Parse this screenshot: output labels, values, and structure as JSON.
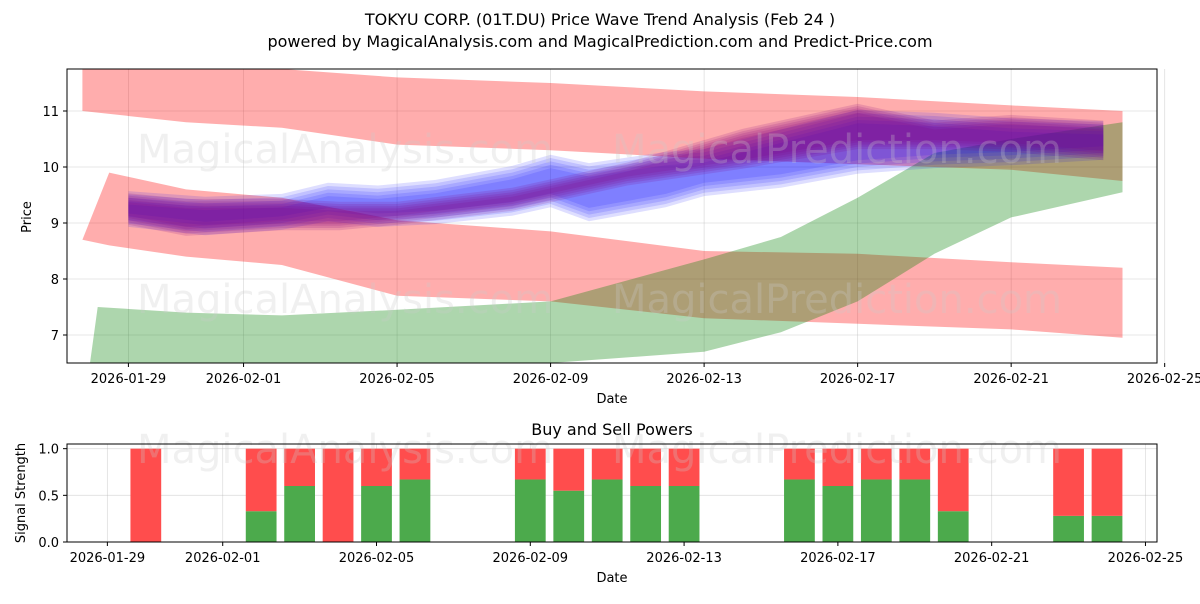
{
  "chart_data": [
    {
      "type": "area",
      "title": "TOKYU CORP. (01T.DU) Price Wave Trend Analysis (Feb 24 )",
      "subtitle": "powered by MagicalAnalysis.com and MagicalPrediction.com and Predict-Price.com",
      "xlabel": "Date",
      "ylabel": "Price",
      "xlim": [
        -1.6,
        26.8
      ],
      "ylim": [
        6.5,
        11.75
      ],
      "x_tick_labels": [
        "2026-01-29",
        "2026-02-01",
        "2026-02-05",
        "2026-02-09",
        "2026-02-13",
        "2026-02-17",
        "2026-02-21",
        "2026-02-25"
      ],
      "x_tick_values": [
        0,
        3,
        7,
        11,
        15,
        19,
        23,
        27
      ],
      "y_ticks": [
        7,
        8,
        9,
        10,
        11
      ],
      "grid": true,
      "colors": {
        "red_band": "#ff0000",
        "green_band": "#008000",
        "blue_wave": "#0000ff",
        "purple_wave": "#800080"
      },
      "series": [
        {
          "name": "upper red band",
          "x": [
            -1.2,
            1.5,
            4,
            7,
            11,
            15,
            19,
            23,
            25.9
          ],
          "upper": [
            11.85,
            11.75,
            11.75,
            11.6,
            11.5,
            11.35,
            11.25,
            11.1,
            11.0
          ],
          "lower": [
            11.0,
            10.8,
            10.7,
            10.4,
            10.3,
            10.15,
            10.05,
            9.95,
            9.75
          ]
        },
        {
          "name": "lower red band",
          "x": [
            -1.2,
            -0.5,
            1.5,
            4,
            7,
            11,
            15,
            19,
            23,
            25.9
          ],
          "upper": [
            8.7,
            9.9,
            9.6,
            9.45,
            9.05,
            8.85,
            8.5,
            8.45,
            8.3,
            8.2
          ],
          "lower": [
            8.7,
            8.6,
            8.4,
            8.25,
            7.7,
            7.6,
            7.3,
            7.2,
            7.1,
            6.95
          ]
        },
        {
          "name": "green band",
          "x": [
            -1.0,
            -0.8,
            1.5,
            4,
            7,
            11,
            15,
            17,
            19,
            21,
            23,
            25.9
          ],
          "upper": [
            6.5,
            7.5,
            7.4,
            7.35,
            7.45,
            7.6,
            8.35,
            8.75,
            9.45,
            10.25,
            10.5,
            10.8
          ],
          "lower": [
            6.5,
            6.5,
            6.5,
            6.5,
            6.5,
            6.5,
            6.7,
            7.05,
            7.6,
            8.45,
            9.1,
            9.55
          ]
        },
        {
          "name": "blue wave",
          "x": [
            0,
            2,
            4,
            5.2,
            6.5,
            8,
            10,
            11,
            12,
            14,
            15,
            17,
            19,
            21,
            23,
            25.4
          ],
          "upper": [
            9.45,
            9.35,
            9.4,
            9.6,
            9.55,
            9.65,
            9.9,
            10.1,
            9.95,
            10.15,
            10.2,
            10.55,
            10.9,
            10.85,
            10.75,
            10.7
          ],
          "lower": [
            9.05,
            8.9,
            9.0,
            9.15,
            9.05,
            9.1,
            9.25,
            9.4,
            9.15,
            9.4,
            9.6,
            9.75,
            10.0,
            10.1,
            10.15,
            10.25
          ]
        },
        {
          "name": "purple wave",
          "x": [
            0,
            1.5,
            4,
            5.5,
            7,
            10,
            13,
            16,
            19,
            21,
            23,
            25.4
          ],
          "upper": [
            9.45,
            9.35,
            9.35,
            9.3,
            9.3,
            9.55,
            10.0,
            10.6,
            11.05,
            10.75,
            10.85,
            10.75
          ],
          "lower": [
            9.05,
            8.85,
            8.95,
            8.95,
            9.05,
            9.3,
            9.75,
            10.05,
            10.4,
            10.4,
            10.35,
            10.2
          ]
        }
      ],
      "watermarks": [
        "MagicalAnalysis.com",
        "MagicalPrediction.com",
        "MagicalAnalysis.com",
        "MagicalPrediction.com"
      ]
    },
    {
      "type": "bar",
      "title": "Buy and Sell Powers",
      "xlabel": "Date",
      "ylabel": "Signal Strength",
      "ylim": [
        0,
        1.05
      ],
      "y_tick_labels": [
        "0.0",
        "0.5",
        "1.0"
      ],
      "x_tick_labels": [
        "2026-01-29",
        "2026-02-01",
        "2026-02-05",
        "2026-02-09",
        "2026-02-13",
        "2026-02-17",
        "2026-02-21",
        "2026-02-25"
      ],
      "categories": [
        1,
        4,
        5,
        6,
        7,
        8,
        11,
        12,
        13,
        14,
        15,
        18,
        19,
        20,
        21,
        22,
        25,
        26
      ],
      "series": [
        {
          "name": "Buy",
          "color": "#4caa4c",
          "values": [
            0,
            0.33,
            0.6,
            0,
            0.6,
            0.67,
            0.67,
            0.55,
            0.67,
            0.6,
            0.6,
            0.67,
            0.6,
            0.67,
            0.67,
            0.33,
            0.28,
            0.28
          ]
        },
        {
          "name": "Sell",
          "color": "#ff4d4d",
          "values": [
            1,
            0.67,
            0.4,
            1,
            0.4,
            0.33,
            0.33,
            0.45,
            0.33,
            0.4,
            0.4,
            0.33,
            0.4,
            0.33,
            0.33,
            0.67,
            0.72,
            0.72
          ]
        }
      ],
      "watermarks": [
        "MagicalAnalysis.com",
        "MagicalPrediction.com"
      ]
    }
  ]
}
